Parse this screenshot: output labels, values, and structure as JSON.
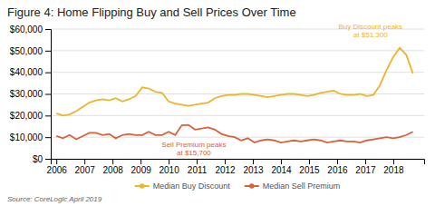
{
  "chart_data": {
    "type": "line",
    "title": "Figure 4: Home Flipping Buy and Sell Prices Over Time",
    "source": "Source: CoreLogic April 2019",
    "x": [
      2006,
      2006.2352,
      2006.4704,
      2006.7056,
      2006.9407,
      2007.1759,
      2007.4111,
      2007.6463,
      2007.8815,
      2008.1167,
      2008.3519,
      2008.587,
      2008.8222,
      2009.0574,
      2009.2926,
      2009.5278,
      2009.763,
      2009.9981,
      2010.2333,
      2010.4685,
      2010.7037,
      2010.9389,
      2011.1741,
      2011.4093,
      2011.6444,
      2011.8796,
      2012.1148,
      2012.35,
      2012.5852,
      2012.8204,
      2013.0556,
      2013.2907,
      2013.5259,
      2013.7611,
      2013.9963,
      2014.2315,
      2014.4667,
      2014.7019,
      2014.937,
      2015.1722,
      2015.4074,
      2015.6426,
      2015.8778,
      2016.113,
      2016.3481,
      2016.5833,
      2016.8185,
      2017.0537,
      2017.2889,
      2017.5241,
      2017.7593,
      2017.9944,
      2018.2296,
      2018.4648,
      2018.7
    ],
    "series": [
      {
        "name": "Median Buy Discount",
        "color": "#f0b429",
        "values": [
          21000,
          20000,
          20500,
          22000,
          24000,
          26000,
          27000,
          27500,
          27000,
          28000,
          26500,
          27500,
          29000,
          33000,
          32500,
          31000,
          30500,
          26500,
          25500,
          25000,
          24500,
          25000,
          25500,
          26000,
          28000,
          29000,
          29500,
          29500,
          30000,
          30000,
          29500,
          29000,
          28500,
          29000,
          29500,
          30000,
          30000,
          29500,
          29000,
          29500,
          30500,
          31000,
          31500,
          30000,
          29500,
          29500,
          30000,
          29000,
          29500,
          34000,
          41000,
          47000,
          51300,
          48000,
          39500
        ]
      },
      {
        "name": "Median Sell Premium",
        "color": "#d9623b",
        "values": [
          10500,
          9500,
          11000,
          9000,
          10500,
          12000,
          12000,
          11000,
          11500,
          9500,
          11000,
          11500,
          11000,
          11000,
          12500,
          11000,
          11000,
          12500,
          11000,
          15500,
          15700,
          13500,
          14000,
          14500,
          13500,
          11500,
          10500,
          10000,
          8500,
          9500,
          7500,
          8500,
          9000,
          8500,
          7500,
          8000,
          8500,
          8000,
          8500,
          9000,
          8500,
          7500,
          8000,
          8500,
          8000,
          8000,
          7500,
          8500,
          9000,
          9500,
          10000,
          9500,
          10000,
          11000,
          12500
        ]
      }
    ],
    "xlim": [
      2005.8,
      2019.1
    ],
    "xticks": [
      2006,
      2007,
      2008,
      2009,
      2010,
      2011,
      2012,
      2013,
      2014,
      2015,
      2016,
      2017,
      2018
    ],
    "ylim": [
      0,
      60000
    ],
    "yticks": [
      {
        "value": 0,
        "label": "$0"
      },
      {
        "value": 10000,
        "label": "$10,000"
      },
      {
        "value": 20000,
        "label": "$20,000"
      },
      {
        "value": 30000,
        "label": "$30,000"
      },
      {
        "value": 40000,
        "label": "$40,000"
      },
      {
        "value": 50000,
        "label": "$50,000"
      },
      {
        "value": 60000,
        "label": "$60,000"
      }
    ],
    "grid": true,
    "legend": "bottom",
    "annotations": [
      {
        "text": "Buy Discount peaks\nat $51,300",
        "x": 2017.9944,
        "y": 51300
      },
      {
        "text": "Sell Premium peaks\nat $15,700",
        "x": 2010.7037,
        "y": 15700
      }
    ]
  }
}
